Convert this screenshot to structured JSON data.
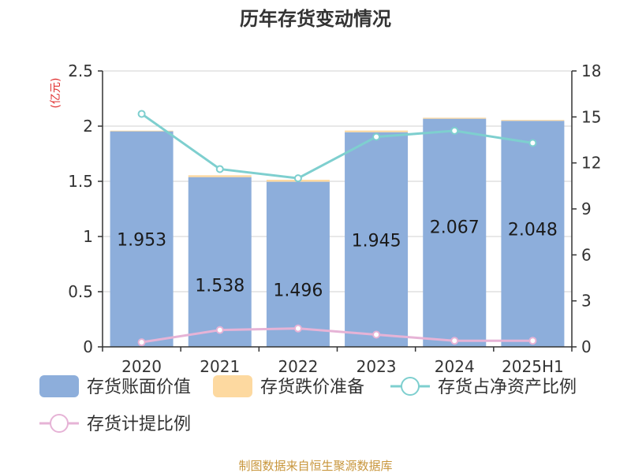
{
  "chart_data": {
    "type": "bar",
    "title": "历年存货变动情况",
    "categories": [
      "2020",
      "2021",
      "2022",
      "2023",
      "2024",
      "2025H1"
    ],
    "y_left": {
      "unit": "(亿元)",
      "ticks": [
        "0",
        "0.5",
        "1",
        "1.5",
        "2",
        "2.5"
      ],
      "range": [
        0,
        2.5
      ]
    },
    "y_right": {
      "unit": "%",
      "ticks": [
        "0",
        "3",
        "6",
        "9",
        "12",
        "15",
        "18"
      ],
      "range": [
        0,
        18
      ]
    },
    "series": [
      {
        "name": "存货账面价值",
        "type": "bar",
        "axis": "left",
        "color": "#8daedb",
        "values": [
          1.953,
          1.538,
          1.496,
          1.945,
          2.067,
          2.048
        ],
        "labels": [
          "1.953",
          "1.538",
          "1.496",
          "1.945",
          "2.067",
          "2.048"
        ]
      },
      {
        "name": "存货跌价准备",
        "type": "bar",
        "axis": "left",
        "color": "#fdd9a0",
        "values": [
          0.006,
          0.017,
          0.018,
          0.015,
          0.009,
          0.008
        ]
      },
      {
        "name": "存货占净资产比例",
        "type": "line",
        "axis": "right",
        "color": "#7ecfcf",
        "values": [
          15.2,
          11.6,
          11.0,
          13.7,
          14.1,
          13.3
        ]
      },
      {
        "name": "存货计提比例",
        "type": "line",
        "axis": "right",
        "color": "#e6b3d6",
        "values": [
          0.3,
          1.1,
          1.2,
          0.8,
          0.4,
          0.4
        ]
      }
    ],
    "grid": true,
    "legend": "bottom"
  },
  "footer": {
    "source": "制图数据来自恒生聚源数据库"
  }
}
